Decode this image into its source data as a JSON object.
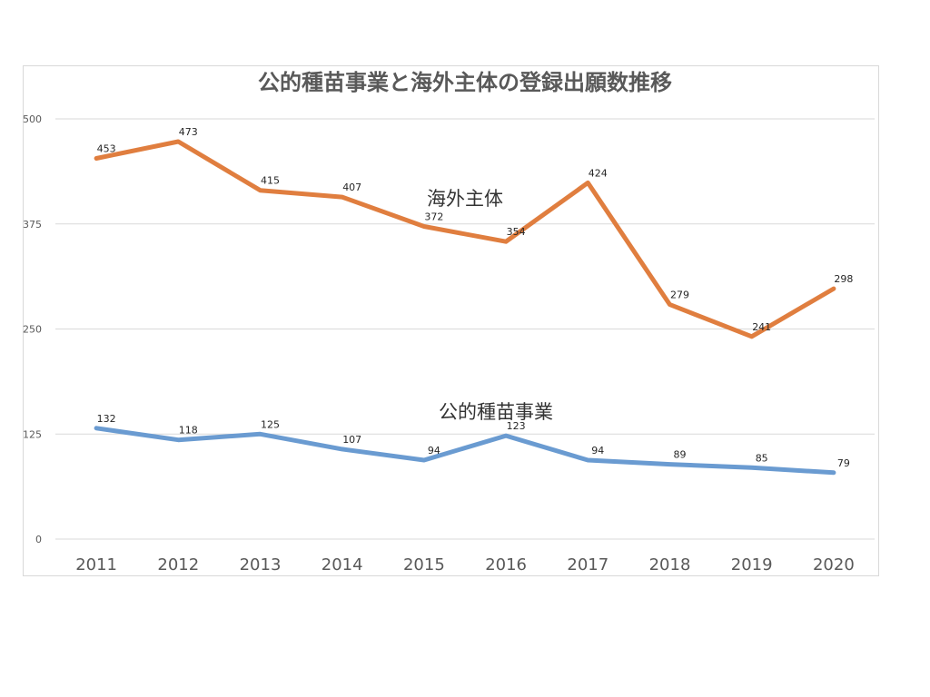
{
  "chart_data": {
    "type": "line",
    "title": "公的種苗事業と海外主体の登録出願数推移",
    "xlabel": "",
    "ylabel": "",
    "ylim": [
      0,
      500
    ],
    "yticks": [
      0,
      125,
      250,
      375,
      500
    ],
    "grid": true,
    "legend": "none",
    "categories": [
      "2011",
      "2012",
      "2013",
      "2014",
      "2015",
      "2016",
      "2017",
      "2018",
      "2019",
      "2020"
    ],
    "series": [
      {
        "name": "海外主体",
        "color": "#e07e3f",
        "values": [
          453,
          473,
          415,
          407,
          372,
          354,
          424,
          279,
          241,
          298
        ]
      },
      {
        "name": "公的種苗事業",
        "color": "#6a9bd1",
        "values": [
          132,
          118,
          125,
          107,
          94,
          123,
          94,
          89,
          85,
          79
        ]
      }
    ]
  }
}
